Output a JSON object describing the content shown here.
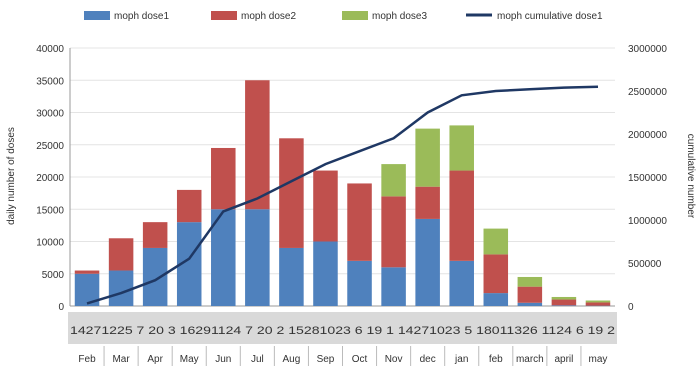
{
  "chart_data": {
    "type": "bar",
    "subtype": "stacked bar with cumulative line on secondary axis",
    "legend": {
      "position": "top",
      "entries": [
        {
          "label": "moph dose1",
          "color": "#4f81bd",
          "kind": "bar"
        },
        {
          "label": "moph dose2",
          "color": "#c0504d",
          "kind": "bar"
        },
        {
          "label": "moph dose3",
          "color": "#9bbb59",
          "kind": "bar"
        },
        {
          "label": "moph cumulative dose1",
          "color": "#1f3864",
          "kind": "line"
        }
      ]
    },
    "y_left": {
      "label": "daily number of doses",
      "ylim": [
        0,
        40000
      ],
      "ticks": [
        "0",
        "5000",
        "10000",
        "15000",
        "20000",
        "25000",
        "30000",
        "35000",
        "40000"
      ]
    },
    "y_right": {
      "label": "cumulative number",
      "ylim": [
        0,
        3000000
      ],
      "ticks": [
        "0",
        "500000",
        "1000000",
        "1500000",
        "2000000",
        "2500000",
        "3000000"
      ]
    },
    "day_tick_text": "14271225 7 20 3 16291124 7 20 2 15281023 6 19 1 14271023 5 18011326 1124 6 19 2",
    "months": [
      "Feb",
      "Mar",
      "Apr",
      "May",
      "Jun",
      "Jul",
      "Aug",
      "Sep",
      "Oct",
      "Nov",
      "dec",
      "jan",
      "feb",
      "march",
      "april",
      "may"
    ],
    "categories": [
      "Feb",
      "Mar",
      "Apr",
      "May",
      "Jun",
      "Jul",
      "Aug",
      "Sep",
      "Oct",
      "Nov",
      "dec",
      "jan",
      "feb",
      "march",
      "april",
      "may"
    ],
    "series": [
      {
        "name": "moph dose1",
        "values": [
          5000,
          5500,
          9000,
          13000,
          15000,
          15000,
          9000,
          10000,
          7000,
          6000,
          13500,
          7000,
          2000,
          500,
          100,
          50
        ]
      },
      {
        "name": "moph dose2",
        "values": [
          500,
          5000,
          4000,
          5000,
          9500,
          20000,
          17000,
          11000,
          12000,
          11000,
          5000,
          14000,
          6000,
          2500,
          900,
          500
        ]
      },
      {
        "name": "moph dose3",
        "values": [
          0,
          0,
          0,
          0,
          0,
          0,
          0,
          0,
          0,
          5000,
          9000,
          7000,
          4000,
          1500,
          400,
          300
        ]
      }
    ],
    "cumulative_line": {
      "name": "moph cumulative dose1",
      "values": [
        30000,
        150000,
        300000,
        550000,
        1100000,
        1250000,
        1450000,
        1650000,
        1800000,
        1950000,
        2250000,
        2450000,
        2500000,
        2520000,
        2540000,
        2550000
      ]
    },
    "grid": true
  }
}
